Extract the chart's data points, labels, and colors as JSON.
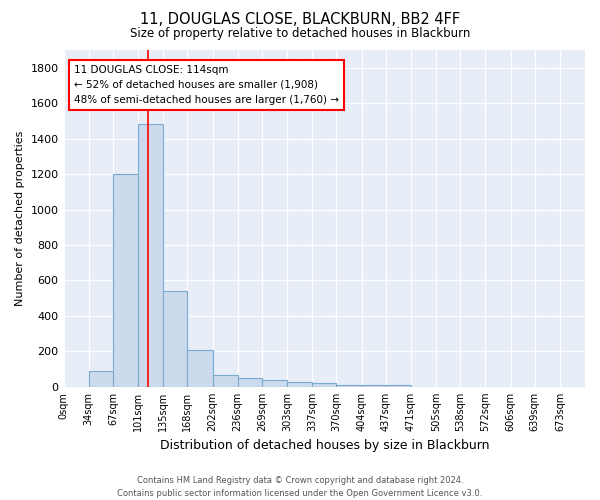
{
  "title": "11, DOUGLAS CLOSE, BLACKBURN, BB2 4FF",
  "subtitle": "Size of property relative to detached houses in Blackburn",
  "xlabel": "Distribution of detached houses by size in Blackburn",
  "ylabel": "Number of detached properties",
  "bin_labels": [
    "0sqm",
    "34sqm",
    "67sqm",
    "101sqm",
    "135sqm",
    "168sqm",
    "202sqm",
    "236sqm",
    "269sqm",
    "303sqm",
    "337sqm",
    "370sqm",
    "404sqm",
    "437sqm",
    "471sqm",
    "505sqm",
    "538sqm",
    "572sqm",
    "606sqm",
    "639sqm",
    "673sqm"
  ],
  "bin_edges": [
    0,
    34,
    67,
    101,
    135,
    168,
    202,
    236,
    269,
    303,
    337,
    370,
    404,
    437,
    471,
    505,
    538,
    572,
    606,
    639,
    673,
    707
  ],
  "bar_heights": [
    0,
    90,
    1200,
    1480,
    540,
    205,
    65,
    50,
    40,
    28,
    20,
    12,
    8,
    10,
    0,
    0,
    0,
    0,
    0,
    0,
    0
  ],
  "bar_color": "#ccdaed",
  "bar_edge_color": "#7aaad0",
  "red_line_x": 114,
  "annotation_title": "11 DOUGLAS CLOSE: 114sqm",
  "annotation_line2": "← 52% of detached houses are smaller (1,908)",
  "annotation_line3": "48% of semi-detached houses are larger (1,760) →",
  "ylim": [
    0,
    1900
  ],
  "yticks": [
    0,
    200,
    400,
    600,
    800,
    1000,
    1200,
    1400,
    1600,
    1800
  ],
  "fig_bg_color": "#ffffff",
  "plot_bg_color": "#e8eef8",
  "grid_color": "#ffffff",
  "footer_line1": "Contains HM Land Registry data © Crown copyright and database right 2024.",
  "footer_line2": "Contains public sector information licensed under the Open Government Licence v3.0."
}
